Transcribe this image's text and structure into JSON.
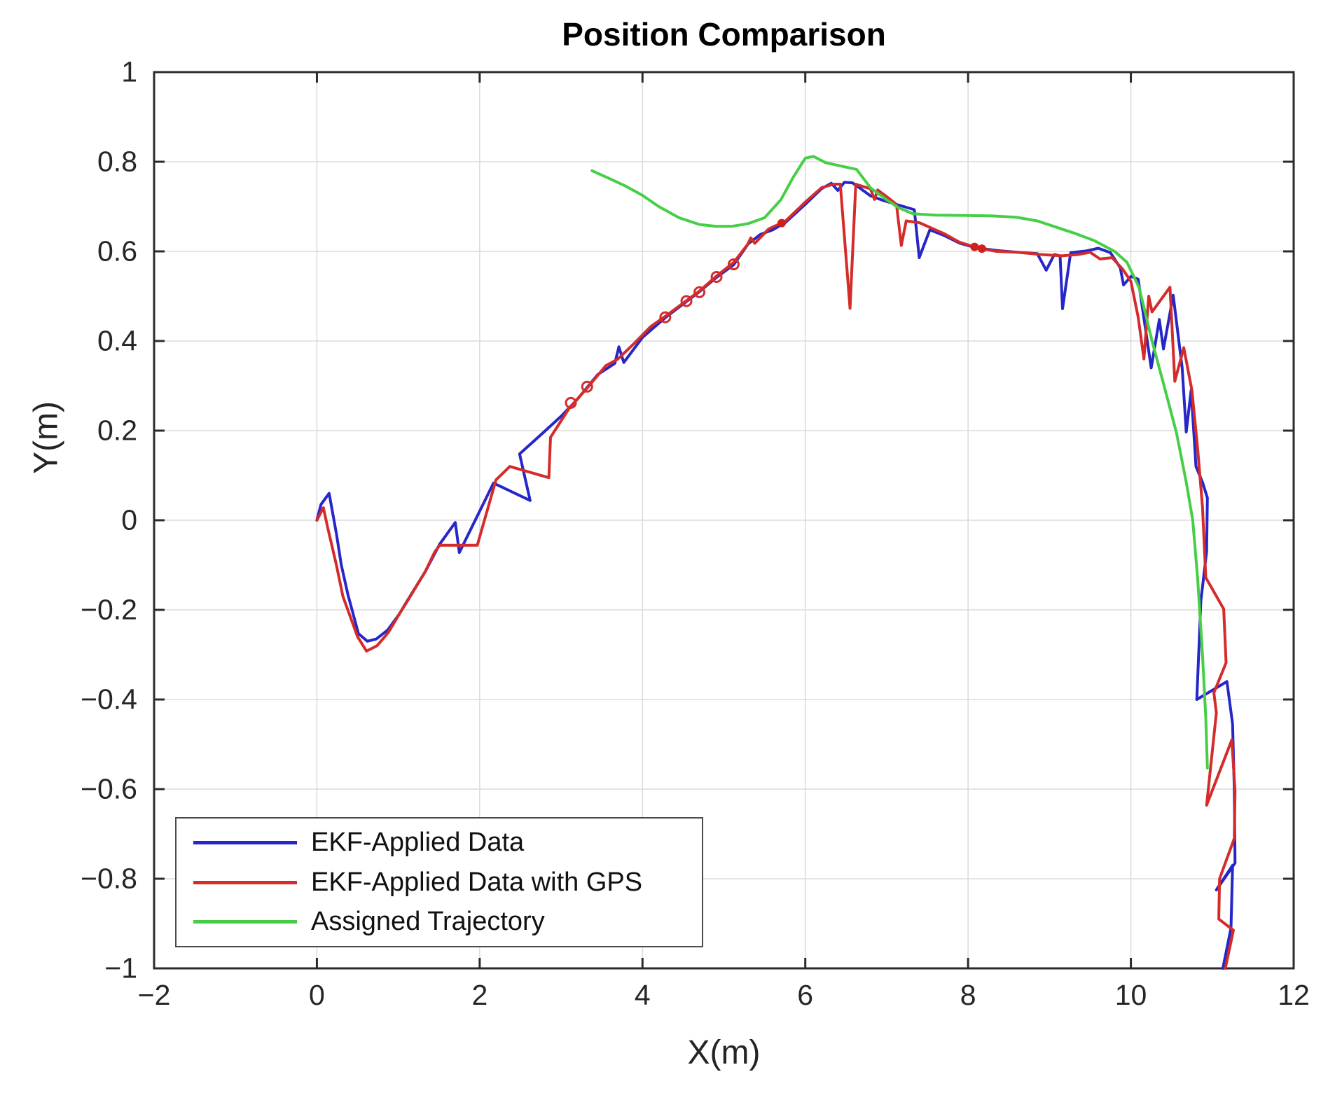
{
  "figure": {
    "title": "Position Comparison",
    "xlabel": "X(m)",
    "ylabel": "Y(m)"
  },
  "chart_data": {
    "type": "line",
    "title": "Position Comparison",
    "xlabel": "X(m)",
    "ylabel": "Y(m)",
    "xlim": [
      -2,
      12
    ],
    "ylim": [
      -1,
      1
    ],
    "xticks": [
      -2,
      0,
      2,
      4,
      6,
      8,
      10,
      12
    ],
    "xtick_labels": [
      "−2",
      "0",
      "2",
      "4",
      "6",
      "8",
      "10",
      "12"
    ],
    "yticks": [
      -1,
      -0.8,
      -0.6,
      -0.4,
      -0.2,
      0,
      0.2,
      0.4,
      0.6,
      0.8,
      1
    ],
    "ytick_labels": [
      "−1",
      "−0.8",
      "−0.6",
      "−0.4",
      "−0.2",
      "0",
      "0.2",
      "0.4",
      "0.6",
      "0.8",
      "1"
    ],
    "grid": true,
    "grid_color": "#dcdcdc",
    "axis_color": "#2b2b2b",
    "legend_position": "southwest",
    "series": [
      {
        "id": "ekf-applied-data",
        "name": "EKF-Applied Data",
        "color": "#2626c9",
        "width": 4,
        "points": [
          [
            0.0,
            0.0
          ],
          [
            0.05,
            0.035
          ],
          [
            0.15,
            0.06
          ],
          [
            0.24,
            -0.03
          ],
          [
            0.3,
            -0.1
          ],
          [
            0.38,
            -0.165
          ],
          [
            0.51,
            -0.253
          ],
          [
            0.62,
            -0.27
          ],
          [
            0.73,
            -0.265
          ],
          [
            0.87,
            -0.245
          ],
          [
            1.01,
            -0.21
          ],
          [
            1.11,
            -0.18
          ],
          [
            1.33,
            -0.115
          ],
          [
            1.51,
            -0.053
          ],
          [
            1.7,
            -0.005
          ],
          [
            1.75,
            -0.072
          ],
          [
            2.17,
            0.083
          ],
          [
            2.62,
            0.044
          ],
          [
            2.49,
            0.148
          ],
          [
            2.79,
            0.197
          ],
          [
            3.0,
            0.232
          ],
          [
            3.2,
            0.27
          ],
          [
            3.45,
            0.325
          ],
          [
            3.66,
            0.35
          ],
          [
            3.71,
            0.387
          ],
          [
            3.77,
            0.352
          ],
          [
            4.0,
            0.408
          ],
          [
            4.28,
            0.452
          ],
          [
            4.54,
            0.488
          ],
          [
            4.7,
            0.51
          ],
          [
            4.91,
            0.542
          ],
          [
            5.12,
            0.57
          ],
          [
            5.3,
            0.617
          ],
          [
            5.45,
            0.638
          ],
          [
            5.6,
            0.648
          ],
          [
            5.76,
            0.665
          ],
          [
            6.0,
            0.705
          ],
          [
            6.2,
            0.74
          ],
          [
            6.32,
            0.752
          ],
          [
            6.4,
            0.736
          ],
          [
            6.48,
            0.754
          ],
          [
            6.58,
            0.753
          ],
          [
            6.68,
            0.74
          ],
          [
            6.8,
            0.724
          ],
          [
            6.95,
            0.714
          ],
          [
            7.08,
            0.707
          ],
          [
            7.34,
            0.693
          ],
          [
            7.4,
            0.586
          ],
          [
            7.53,
            0.648
          ],
          [
            7.7,
            0.636
          ],
          [
            7.9,
            0.618
          ],
          [
            8.1,
            0.608
          ],
          [
            8.35,
            0.602
          ],
          [
            8.6,
            0.598
          ],
          [
            8.85,
            0.595
          ],
          [
            8.96,
            0.558
          ],
          [
            9.06,
            0.593
          ],
          [
            9.13,
            0.59
          ],
          [
            9.16,
            0.472
          ],
          [
            9.26,
            0.597
          ],
          [
            9.45,
            0.601
          ],
          [
            9.6,
            0.607
          ],
          [
            9.75,
            0.597
          ],
          [
            9.87,
            0.563
          ],
          [
            9.91,
            0.525
          ],
          [
            10.0,
            0.544
          ],
          [
            10.09,
            0.538
          ],
          [
            10.25,
            0.34
          ],
          [
            10.35,
            0.448
          ],
          [
            10.4,
            0.382
          ],
          [
            10.52,
            0.502
          ],
          [
            10.63,
            0.34
          ],
          [
            10.68,
            0.197
          ],
          [
            10.74,
            0.29
          ],
          [
            10.8,
            0.12
          ],
          [
            10.88,
            0.085
          ],
          [
            10.94,
            0.05
          ],
          [
            10.93,
            -0.07
          ],
          [
            10.86,
            -0.18
          ],
          [
            10.81,
            -0.4
          ],
          [
            11.18,
            -0.36
          ],
          [
            11.25,
            -0.455
          ],
          [
            11.27,
            -0.6
          ],
          [
            11.28,
            -0.765
          ],
          [
            11.05,
            -0.825
          ],
          [
            11.25,
            -0.77
          ],
          [
            11.23,
            -0.91
          ],
          [
            11.13,
            -1.0
          ]
        ]
      },
      {
        "id": "ekf-applied-data-with-gps",
        "name": "EKF-Applied Data with GPS",
        "color": "#d42b2b",
        "width": 4,
        "points": [
          [
            0.0,
            0.0
          ],
          [
            0.08,
            0.028
          ],
          [
            0.13,
            -0.014
          ],
          [
            0.24,
            -0.1
          ],
          [
            0.32,
            -0.17
          ],
          [
            0.5,
            -0.26
          ],
          [
            0.61,
            -0.292
          ],
          [
            0.74,
            -0.28
          ],
          [
            0.88,
            -0.25
          ],
          [
            1.01,
            -0.21
          ],
          [
            1.12,
            -0.178
          ],
          [
            1.33,
            -0.115
          ],
          [
            1.45,
            -0.07
          ],
          [
            1.51,
            -0.056
          ],
          [
            1.97,
            -0.056
          ],
          [
            2.2,
            0.09
          ],
          [
            2.37,
            0.12
          ],
          [
            2.85,
            0.095
          ],
          [
            2.87,
            0.185
          ],
          [
            3.1,
            0.25
          ],
          [
            3.32,
            0.295
          ],
          [
            3.55,
            0.345
          ],
          [
            3.7,
            0.36
          ],
          [
            3.9,
            0.395
          ],
          [
            4.1,
            0.432
          ],
          [
            4.28,
            0.455
          ],
          [
            4.54,
            0.49
          ],
          [
            4.69,
            0.51
          ],
          [
            4.91,
            0.545
          ],
          [
            5.12,
            0.575
          ],
          [
            5.29,
            0.615
          ],
          [
            5.33,
            0.63
          ],
          [
            5.38,
            0.618
          ],
          [
            5.55,
            0.65
          ],
          [
            5.76,
            0.668
          ],
          [
            6.0,
            0.71
          ],
          [
            6.2,
            0.742
          ],
          [
            6.35,
            0.75
          ],
          [
            6.43,
            0.75
          ],
          [
            6.55,
            0.473
          ],
          [
            6.62,
            0.75
          ],
          [
            6.72,
            0.744
          ],
          [
            6.8,
            0.74
          ],
          [
            6.85,
            0.716
          ],
          [
            6.89,
            0.737
          ],
          [
            7.0,
            0.722
          ],
          [
            7.12,
            0.705
          ],
          [
            7.18,
            0.613
          ],
          [
            7.24,
            0.668
          ],
          [
            7.4,
            0.664
          ],
          [
            7.55,
            0.652
          ],
          [
            7.7,
            0.64
          ],
          [
            7.9,
            0.62
          ],
          [
            8.08,
            0.61
          ],
          [
            8.17,
            0.606
          ],
          [
            8.35,
            0.6
          ],
          [
            8.6,
            0.598
          ],
          [
            8.9,
            0.593
          ],
          [
            9.15,
            0.59
          ],
          [
            9.35,
            0.593
          ],
          [
            9.5,
            0.598
          ],
          [
            9.62,
            0.583
          ],
          [
            9.77,
            0.586
          ],
          [
            9.9,
            0.56
          ],
          [
            10.0,
            0.533
          ],
          [
            10.09,
            0.453
          ],
          [
            10.16,
            0.36
          ],
          [
            10.22,
            0.5
          ],
          [
            10.26,
            0.465
          ],
          [
            10.48,
            0.52
          ],
          [
            10.54,
            0.31
          ],
          [
            10.65,
            0.385
          ],
          [
            10.75,
            0.29
          ],
          [
            10.82,
            0.16
          ],
          [
            10.88,
            0.03
          ],
          [
            10.92,
            -0.128
          ],
          [
            11.14,
            -0.198
          ],
          [
            11.17,
            -0.318
          ],
          [
            11.02,
            -0.385
          ],
          [
            11.05,
            -0.43
          ],
          [
            10.93,
            -0.636
          ],
          [
            11.24,
            -0.49
          ],
          [
            11.28,
            -0.605
          ],
          [
            11.27,
            -0.71
          ],
          [
            11.09,
            -0.8
          ],
          [
            11.08,
            -0.89
          ],
          [
            11.26,
            -0.915
          ],
          [
            11.16,
            -1.0
          ]
        ]
      },
      {
        "id": "assigned-trajectory",
        "name": "Assigned Trajectory",
        "color": "#46cf46",
        "width": 4,
        "points": [
          [
            3.38,
            0.78
          ],
          [
            3.6,
            0.762
          ],
          [
            3.8,
            0.745
          ],
          [
            4.0,
            0.725
          ],
          [
            4.2,
            0.7
          ],
          [
            4.45,
            0.675
          ],
          [
            4.7,
            0.66
          ],
          [
            4.9,
            0.656
          ],
          [
            5.1,
            0.656
          ],
          [
            5.3,
            0.662
          ],
          [
            5.5,
            0.675
          ],
          [
            5.7,
            0.715
          ],
          [
            5.85,
            0.765
          ],
          [
            6.0,
            0.808
          ],
          [
            6.1,
            0.812
          ],
          [
            6.25,
            0.798
          ],
          [
            6.45,
            0.79
          ],
          [
            6.63,
            0.783
          ],
          [
            6.8,
            0.742
          ],
          [
            7.0,
            0.715
          ],
          [
            7.15,
            0.697
          ],
          [
            7.32,
            0.684
          ],
          [
            7.6,
            0.681
          ],
          [
            8.0,
            0.68
          ],
          [
            8.3,
            0.679
          ],
          [
            8.6,
            0.676
          ],
          [
            8.85,
            0.668
          ],
          [
            9.05,
            0.656
          ],
          [
            9.3,
            0.641
          ],
          [
            9.55,
            0.624
          ],
          [
            9.8,
            0.6
          ],
          [
            9.95,
            0.576
          ],
          [
            10.1,
            0.52
          ],
          [
            10.26,
            0.4
          ],
          [
            10.4,
            0.305
          ],
          [
            10.56,
            0.195
          ],
          [
            10.68,
            0.085
          ],
          [
            10.76,
            0.0
          ],
          [
            10.82,
            -0.13
          ],
          [
            10.88,
            -0.3
          ],
          [
            10.92,
            -0.44
          ],
          [
            10.94,
            -0.553
          ]
        ]
      }
    ],
    "markers": [
      {
        "id": "red-knot-circles",
        "style": "open-circle",
        "color": "#d42b2b",
        "r": 7,
        "points": [
          [
            3.12,
            0.262
          ],
          [
            3.32,
            0.298
          ],
          [
            4.28,
            0.453
          ],
          [
            4.54,
            0.489
          ],
          [
            4.7,
            0.509
          ],
          [
            4.91,
            0.543
          ],
          [
            5.12,
            0.571
          ]
        ]
      },
      {
        "id": "red-dots",
        "style": "dot",
        "color": "#cf1f1f",
        "r": 6,
        "points": [
          [
            5.71,
            0.663
          ],
          [
            8.08,
            0.61
          ],
          [
            8.17,
            0.606
          ]
        ]
      }
    ]
  }
}
